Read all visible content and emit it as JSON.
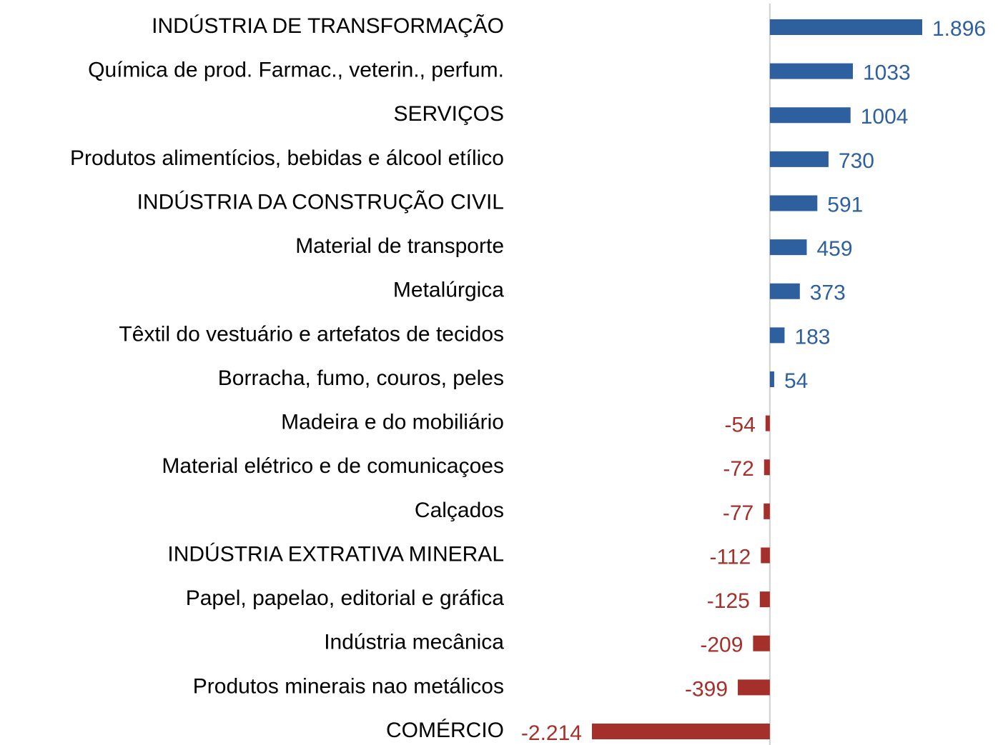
{
  "chart_data": {
    "type": "bar",
    "orientation": "horizontal",
    "categories": [
      "INDÚSTRIA DE TRANSFORMAÇÃO",
      "Química de prod. Farmac., veterin., perfum.",
      "SERVIÇOS",
      "Produtos alimentícios, bebidas e álcool etílico",
      "INDÚSTRIA DA CONSTRUÇÃO CIVIL",
      "Material de transporte",
      "Metalúrgica",
      "Têxtil do vestuário e artefatos de tecidos",
      "Borracha, fumo, couros, peles",
      "Madeira e do mobiliário",
      "Material elétrico e de comunicaçoes",
      "Calçados",
      "INDÚSTRIA EXTRATIVA MINERAL",
      "Papel, papelao, editorial e gráfica",
      "Indústria mecânica",
      "Produtos minerais nao metálicos",
      "COMÉRCIO"
    ],
    "values": [
      1896,
      1033,
      1004,
      730,
      591,
      459,
      373,
      183,
      54,
      -54,
      -72,
      -77,
      -112,
      -125,
      -209,
      -399,
      -2214
    ],
    "value_labels": [
      "1.896",
      "1033",
      "1004",
      "730",
      "591",
      "459",
      "373",
      "183",
      "54",
      "-54",
      "-72",
      "-77",
      "-112",
      "-125",
      "-209",
      "-399",
      "-2.214"
    ],
    "color": "#2e5f9e",
    "negative_color": "#a5302b"
  }
}
